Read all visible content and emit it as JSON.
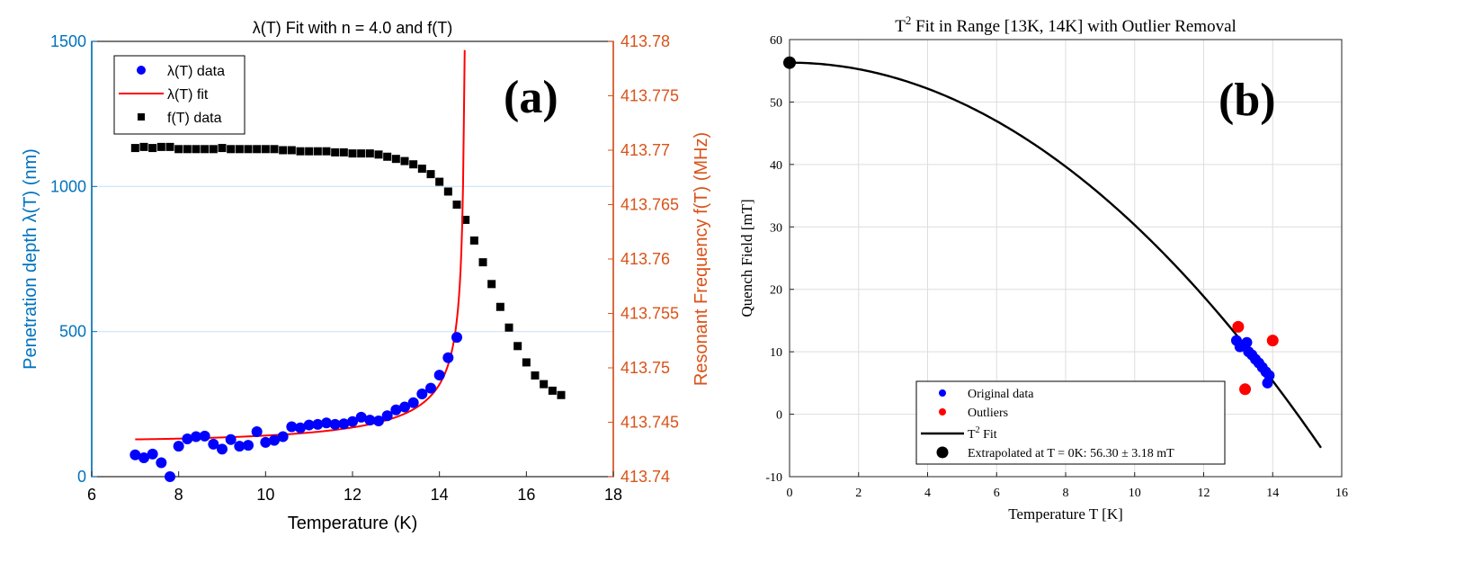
{
  "colors": {
    "blue_axis": "#0072BD",
    "orange_axis": "#D95319",
    "blue_marker": "#0000FF",
    "red": "#FF0000",
    "black": "#000000",
    "grid": "#dddddd",
    "grid_blue": "#cfe3f5"
  },
  "chart_data": [
    {
      "type": "scatter",
      "panel_label": "(a)",
      "title": "λ(T) Fit with n = 4.0 and f(T)",
      "xlabel": "Temperature (K)",
      "ylabel_left": "Penetration depth λ(T) (nm)",
      "ylabel_right": "Resonant Frequency f(T) (MHz)",
      "xlim": [
        6,
        18
      ],
      "ylim_left": [
        0,
        1500
      ],
      "ylim_right": [
        413.74,
        413.78
      ],
      "xticks": [
        6,
        8,
        10,
        12,
        14,
        16,
        18
      ],
      "yticks_left": [
        0,
        500,
        1000,
        1500
      ],
      "yticks_right": [
        "413.74",
        "413.745",
        "413.75",
        "413.755",
        "413.76",
        "413.765",
        "413.77",
        "413.775",
        "413.78"
      ],
      "legend": [
        {
          "label": "λ(T) data",
          "kind": "circle",
          "color": "#0000FF"
        },
        {
          "label": "λ(T) fit",
          "kind": "line",
          "color": "#FF0000"
        },
        {
          "label": "f(T) data",
          "kind": "square",
          "color": "#000000"
        }
      ],
      "lambda_data": {
        "x": [
          7.0,
          7.2,
          7.4,
          7.6,
          7.8,
          8.0,
          8.2,
          8.4,
          8.6,
          8.8,
          9.0,
          9.2,
          9.4,
          9.6,
          9.8,
          10.0,
          10.2,
          10.4,
          10.6,
          10.8,
          11.0,
          11.2,
          11.4,
          11.6,
          11.8,
          12.0,
          12.2,
          12.4,
          12.6,
          12.8,
          13.0,
          13.2,
          13.4,
          13.6,
          13.8,
          14.0,
          14.2,
          14.4
        ],
        "y": [
          75,
          65,
          78,
          48,
          0,
          105,
          130,
          138,
          140,
          112,
          95,
          128,
          105,
          108,
          155,
          118,
          125,
          138,
          172,
          168,
          178,
          180,
          185,
          180,
          182,
          190,
          205,
          195,
          192,
          210,
          230,
          240,
          255,
          285,
          305,
          350,
          410,
          480
        ]
      },
      "lambda_fit": {
        "n": 4.0,
        "lambda0": 125,
        "tc": 14.6,
        "x_start": 7.0,
        "x_end": 14.6,
        "y_max": 1470
      },
      "f_data": {
        "x": [
          7.0,
          7.2,
          7.4,
          7.6,
          7.8,
          8.0,
          8.2,
          8.4,
          8.6,
          8.8,
          9.0,
          9.2,
          9.4,
          9.6,
          9.8,
          10.0,
          10.2,
          10.4,
          10.6,
          10.8,
          11.0,
          11.2,
          11.4,
          11.6,
          11.8,
          12.0,
          12.2,
          12.4,
          12.6,
          12.8,
          13.0,
          13.2,
          13.4,
          13.6,
          13.8,
          14.0,
          14.2,
          14.4,
          14.6,
          14.8,
          15.0,
          15.2,
          15.4,
          15.6,
          15.8,
          16.0,
          16.2,
          16.4,
          16.6,
          16.8
        ],
        "y": [
          413.7702,
          413.7703,
          413.7702,
          413.7703,
          413.7703,
          413.7701,
          413.7701,
          413.7701,
          413.7701,
          413.7701,
          413.7702,
          413.7701,
          413.7701,
          413.7701,
          413.7701,
          413.7701,
          413.7701,
          413.77,
          413.77,
          413.7699,
          413.7699,
          413.7699,
          413.7699,
          413.7698,
          413.7698,
          413.7697,
          413.7697,
          413.7697,
          413.7696,
          413.7694,
          413.7692,
          413.769,
          413.7687,
          413.7683,
          413.7678,
          413.7671,
          413.7662,
          413.765,
          413.7636,
          413.7617,
          413.7597,
          413.7577,
          413.7556,
          413.7537,
          413.752,
          413.7505,
          413.7493,
          413.7485,
          413.7479,
          413.7475
        ]
      }
    },
    {
      "type": "scatter",
      "panel_label": "(b)",
      "title_prefix": "T",
      "title_sup": "2",
      "title_suffix": " Fit in Range [13K, 14K] with Outlier Removal",
      "xlabel": "Temperature T [K]",
      "ylabel": "Quench Field [mT]",
      "xlim": [
        0,
        16
      ],
      "ylim": [
        -10,
        60
      ],
      "xticks": [
        0,
        2,
        4,
        6,
        8,
        10,
        12,
        14,
        16
      ],
      "yticks": [
        -10,
        0,
        10,
        20,
        30,
        40,
        50,
        60
      ],
      "legend": [
        {
          "label": "Original data",
          "kind": "dot",
          "color": "#0000FF"
        },
        {
          "label": "Outliers",
          "kind": "dot",
          "color": "#FF0000"
        },
        {
          "label_prefix": "T",
          "label_sup": "2",
          "label_suffix": " Fit",
          "kind": "line",
          "color": "#000000"
        },
        {
          "label": "Extrapolated at T = 0K: 56.30 ± 3.18 mT",
          "kind": "bigdot",
          "color": "#000000"
        }
      ],
      "fit": {
        "a": 56.3,
        "b": 0.26,
        "x_start": 0,
        "x_end": 15.4
      },
      "original_data": {
        "x": [
          12.95,
          13.05,
          13.15,
          13.25,
          13.3,
          13.4,
          13.5,
          13.6,
          13.7,
          13.8,
          13.85,
          13.9
        ],
        "y": [
          11.8,
          10.8,
          11.0,
          11.5,
          10.0,
          9.5,
          8.8,
          8.2,
          7.5,
          6.8,
          5.0,
          6.2
        ]
      },
      "outliers": {
        "x": [
          13.0,
          13.2,
          14.0
        ],
        "y": [
          14.0,
          4.0,
          11.8
        ]
      },
      "extrapolated_point": {
        "x": 0,
        "y": 56.3
      }
    }
  ]
}
